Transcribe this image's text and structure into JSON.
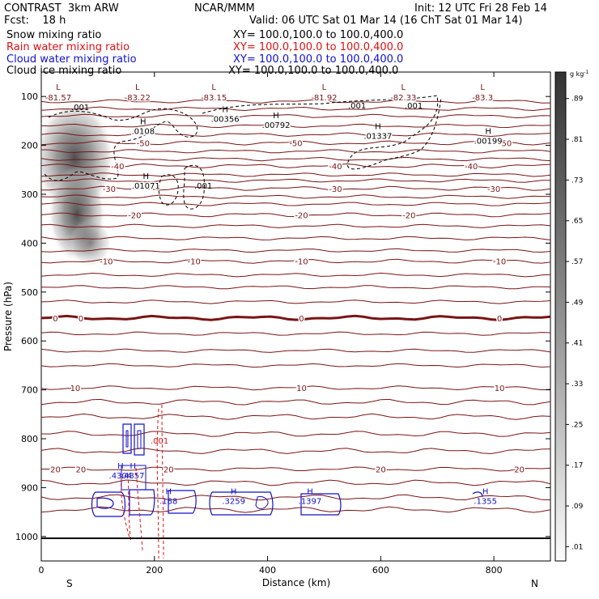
{
  "header": {
    "model": "CONTRAST  3km ARW",
    "org": "NCAR/MMM",
    "init": "Init: 12 UTC Fri 28 Feb 14",
    "fcst": "Fcst:    18 h",
    "valid": "Valid: 06 UTC Sat 01 Mar 14 (16 ChT Sat 01 Mar 14)"
  },
  "fields": [
    {
      "name": "Snow mixing ratio",
      "xy": "XY= 100.0,100.0 to 100.0,400.0",
      "color": "#000000"
    },
    {
      "name": "Rain water mixing ratio",
      "xy": "XY= 100.0,100.0 to 100.0,400.0",
      "color": "#dd1111"
    },
    {
      "name": "Cloud water mixing ratio",
      "xy": "XY= 100.0,100.0 to 100.0,400.0",
      "color": "#1111cc"
    },
    {
      "name": "Cloud ice mixing ratio",
      "xy": "XY= 100.0,100.0 to 100.0,400.0",
      "color": "#000000"
    }
  ],
  "chart_data": {
    "type": "contour cross-section",
    "xlabel": "Distance (km)",
    "ylabel": "Pressure (hPa)",
    "xlim": [
      0,
      900
    ],
    "ylim": [
      1050,
      50
    ],
    "x_ticks": [
      0,
      200,
      400,
      600,
      800
    ],
    "y_ticks": [
      100,
      200,
      300,
      400,
      500,
      600,
      700,
      800,
      900,
      1000
    ],
    "end_labels": {
      "left": "S",
      "right": "N"
    },
    "colorbar": {
      "unit": "g kg",
      "unit_exp": "-1",
      "ticks": [
        ".89",
        ".81",
        ".73",
        ".65",
        ".57",
        ".49",
        ".41",
        ".33",
        ".25",
        ".17",
        ".09",
        ".01"
      ]
    },
    "temperature_isotherms": [
      {
        "label": "-50",
        "p": 195,
        "label_x": [
          180,
          450,
          820
        ]
      },
      {
        "label": "-40",
        "p": 242,
        "label_x": [
          135,
          520,
          760
        ]
      },
      {
        "label": "-30",
        "p": 288,
        "label_x": [
          120,
          520,
          800
        ]
      },
      {
        "label": "-20",
        "p": 342,
        "label_x": [
          165,
          460,
          650
        ]
      },
      {
        "label": "-10",
        "p": 437,
        "label_x": [
          115,
          270,
          460,
          810
        ]
      },
      {
        "label": "0",
        "p": 553,
        "label_x": [
          25,
          70,
          460,
          810
        ]
      },
      {
        "label": "10",
        "p": 696,
        "label_x": [
          60,
          460,
          810
        ]
      },
      {
        "label": "20",
        "p": 862,
        "label_x": [
          25,
          70,
          225,
          600,
          845
        ]
      }
    ],
    "temperature_mins": [
      {
        "label": "L",
        "value": "-81.57",
        "x": 30
      },
      {
        "label": "L",
        "value": "-83.22",
        "x": 170
      },
      {
        "label": "L",
        "value": "-83.15",
        "x": 305
      },
      {
        "label": "L",
        "value": "-81.92",
        "x": 500
      },
      {
        "label": "L",
        "value": "-82.33",
        "x": 640
      },
      {
        "label": "L",
        "value": "-83.3",
        "x": 780
      }
    ],
    "cloud_ice_maxima": [
      {
        "label": "H",
        "value": ".0108",
        "x": 180,
        "p": 170
      },
      {
        "label": "H",
        "value": ".00356",
        "x": 325,
        "p": 145
      },
      {
        "label": "H",
        "value": ".00792",
        "x": 415,
        "p": 158
      },
      {
        "label": "H",
        "value": ".01337",
        "x": 595,
        "p": 180
      },
      {
        "label": "H",
        "value": ".00199",
        "x": 790,
        "p": 190
      },
      {
        "label": "H",
        "value": ".01071",
        "x": 185,
        "p": 282
      }
    ],
    "cloud_ice_contour_labels": [
      ".001",
      ".001",
      ".001",
      ".001"
    ],
    "cloud_water_maxima": [
      {
        "label": "H",
        "value": ".4304",
        "x": 140,
        "p": 878
      },
      {
        "label": "H",
        "value": ".4857",
        "x": 162,
        "p": 878
      },
      {
        "label": "H",
        "value": ".188",
        "x": 225,
        "p": 930
      },
      {
        "label": "H",
        "value": ".3259",
        "x": 340,
        "p": 930
      },
      {
        "label": "H",
        "value": ".1397",
        "x": 475,
        "p": 930
      },
      {
        "label": "H",
        "value": ".1355",
        "x": 785,
        "p": 930
      }
    ],
    "rain_contour_label": ".001"
  }
}
